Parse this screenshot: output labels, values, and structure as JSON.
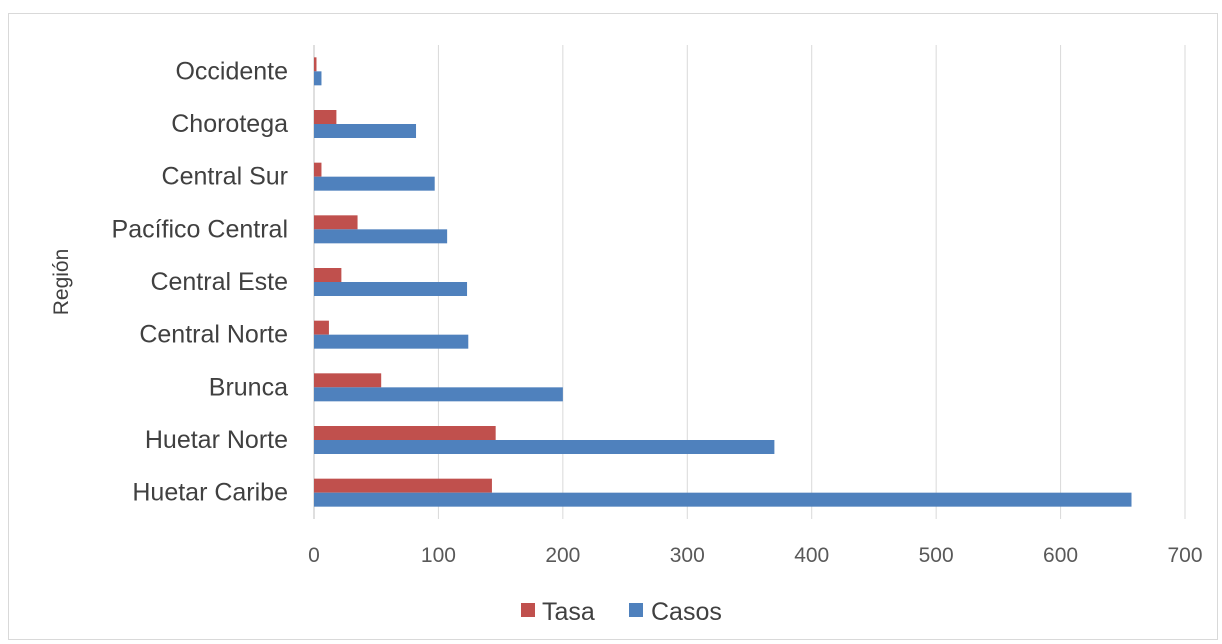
{
  "chart_data": {
    "type": "bar",
    "orientation": "horizontal",
    "title": "",
    "xlabel": "",
    "ylabel": "Región",
    "xlim": [
      0,
      700
    ],
    "xticks": [
      0,
      100,
      200,
      300,
      400,
      500,
      600,
      700
    ],
    "categories": [
      "Huetar Caribe",
      "Huetar Norte",
      "Brunca",
      "Central Norte",
      "Central Este",
      "Pacífico Central",
      "Central Sur",
      "Chorotega",
      "Occidente"
    ],
    "series": [
      {
        "name": "Tasa",
        "color": "#c0504d",
        "values": [
          143,
          146,
          54,
          12,
          22,
          35,
          6,
          18,
          2
        ]
      },
      {
        "name": "Casos",
        "color": "#4f81bd",
        "values": [
          657,
          370,
          200,
          124,
          123,
          107,
          97,
          82,
          6
        ]
      }
    ],
    "grid": true,
    "legend_position": "bottom"
  }
}
